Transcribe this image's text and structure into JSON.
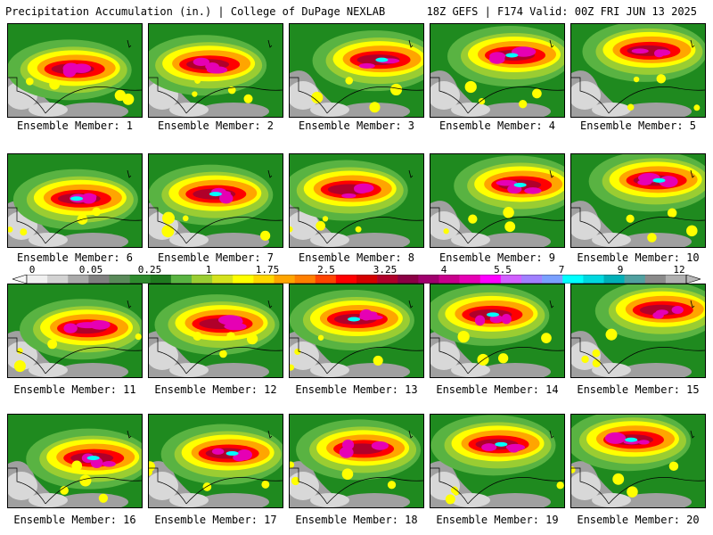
{
  "header": {
    "title_left": "Precipitation Accumulation (in.) | College of DuPage NEXLAB",
    "title_right": "18Z GEFS | F174 Valid: 00Z FRI JUN 13 2025"
  },
  "colorbar": {
    "labels": [
      "0",
      "0.05",
      "0.25",
      "1",
      "1.75",
      "2.5",
      "3.25",
      "4",
      "5.5",
      "7",
      "9",
      "12"
    ],
    "colors": [
      "#f0f0f0",
      "#d2d2d2",
      "#aaaaaa",
      "#808080",
      "#5a8a5a",
      "#2e8b2e",
      "#1f7a1f",
      "#59b342",
      "#9acd32",
      "#d4e21e",
      "#ffff00",
      "#ffd700",
      "#ffa500",
      "#ff7f00",
      "#ff4500",
      "#ff0000",
      "#d40000",
      "#b0002a",
      "#8b0045",
      "#a0006e",
      "#c8008c",
      "#e600b4",
      "#ff00ff",
      "#d060ff",
      "#a080ff",
      "#7aa0ff",
      "#00ffff",
      "#00d8e0",
      "#00b0b8",
      "#50a0a0",
      "#8a8a8a",
      "#b0b0b0"
    ]
  },
  "members": [
    {
      "label": "Ensemble Member: 1"
    },
    {
      "label": "Ensemble Member: 2"
    },
    {
      "label": "Ensemble Member: 3"
    },
    {
      "label": "Ensemble Member: 4"
    },
    {
      "label": "Ensemble Member: 5"
    },
    {
      "label": "Ensemble Member: 6"
    },
    {
      "label": "Ensemble Member: 7"
    },
    {
      "label": "Ensemble Member: 8"
    },
    {
      "label": "Ensemble Member: 9"
    },
    {
      "label": "Ensemble Member: 10"
    },
    {
      "label": "Ensemble Member: 11"
    },
    {
      "label": "Ensemble Member: 12"
    },
    {
      "label": "Ensemble Member: 13"
    },
    {
      "label": "Ensemble Member: 14"
    },
    {
      "label": "Ensemble Member: 15"
    },
    {
      "label": "Ensemble Member: 16"
    },
    {
      "label": "Ensemble Member: 17"
    },
    {
      "label": "Ensemble Member: 18"
    },
    {
      "label": "Ensemble Member: 19"
    },
    {
      "label": "Ensemble Member: 20"
    }
  ],
  "palette": {
    "background_green": "#1f8a1f",
    "light_green": "#59b342",
    "yellow_green": "#9acd32",
    "yellow": "#ffff00",
    "orange": "#ffa500",
    "red": "#ff0000",
    "dark_red": "#b0002a",
    "magenta": "#e600b4",
    "cyan": "#00ffff",
    "gray": "#a0a0a0",
    "light_gray": "#d8d8d8"
  }
}
